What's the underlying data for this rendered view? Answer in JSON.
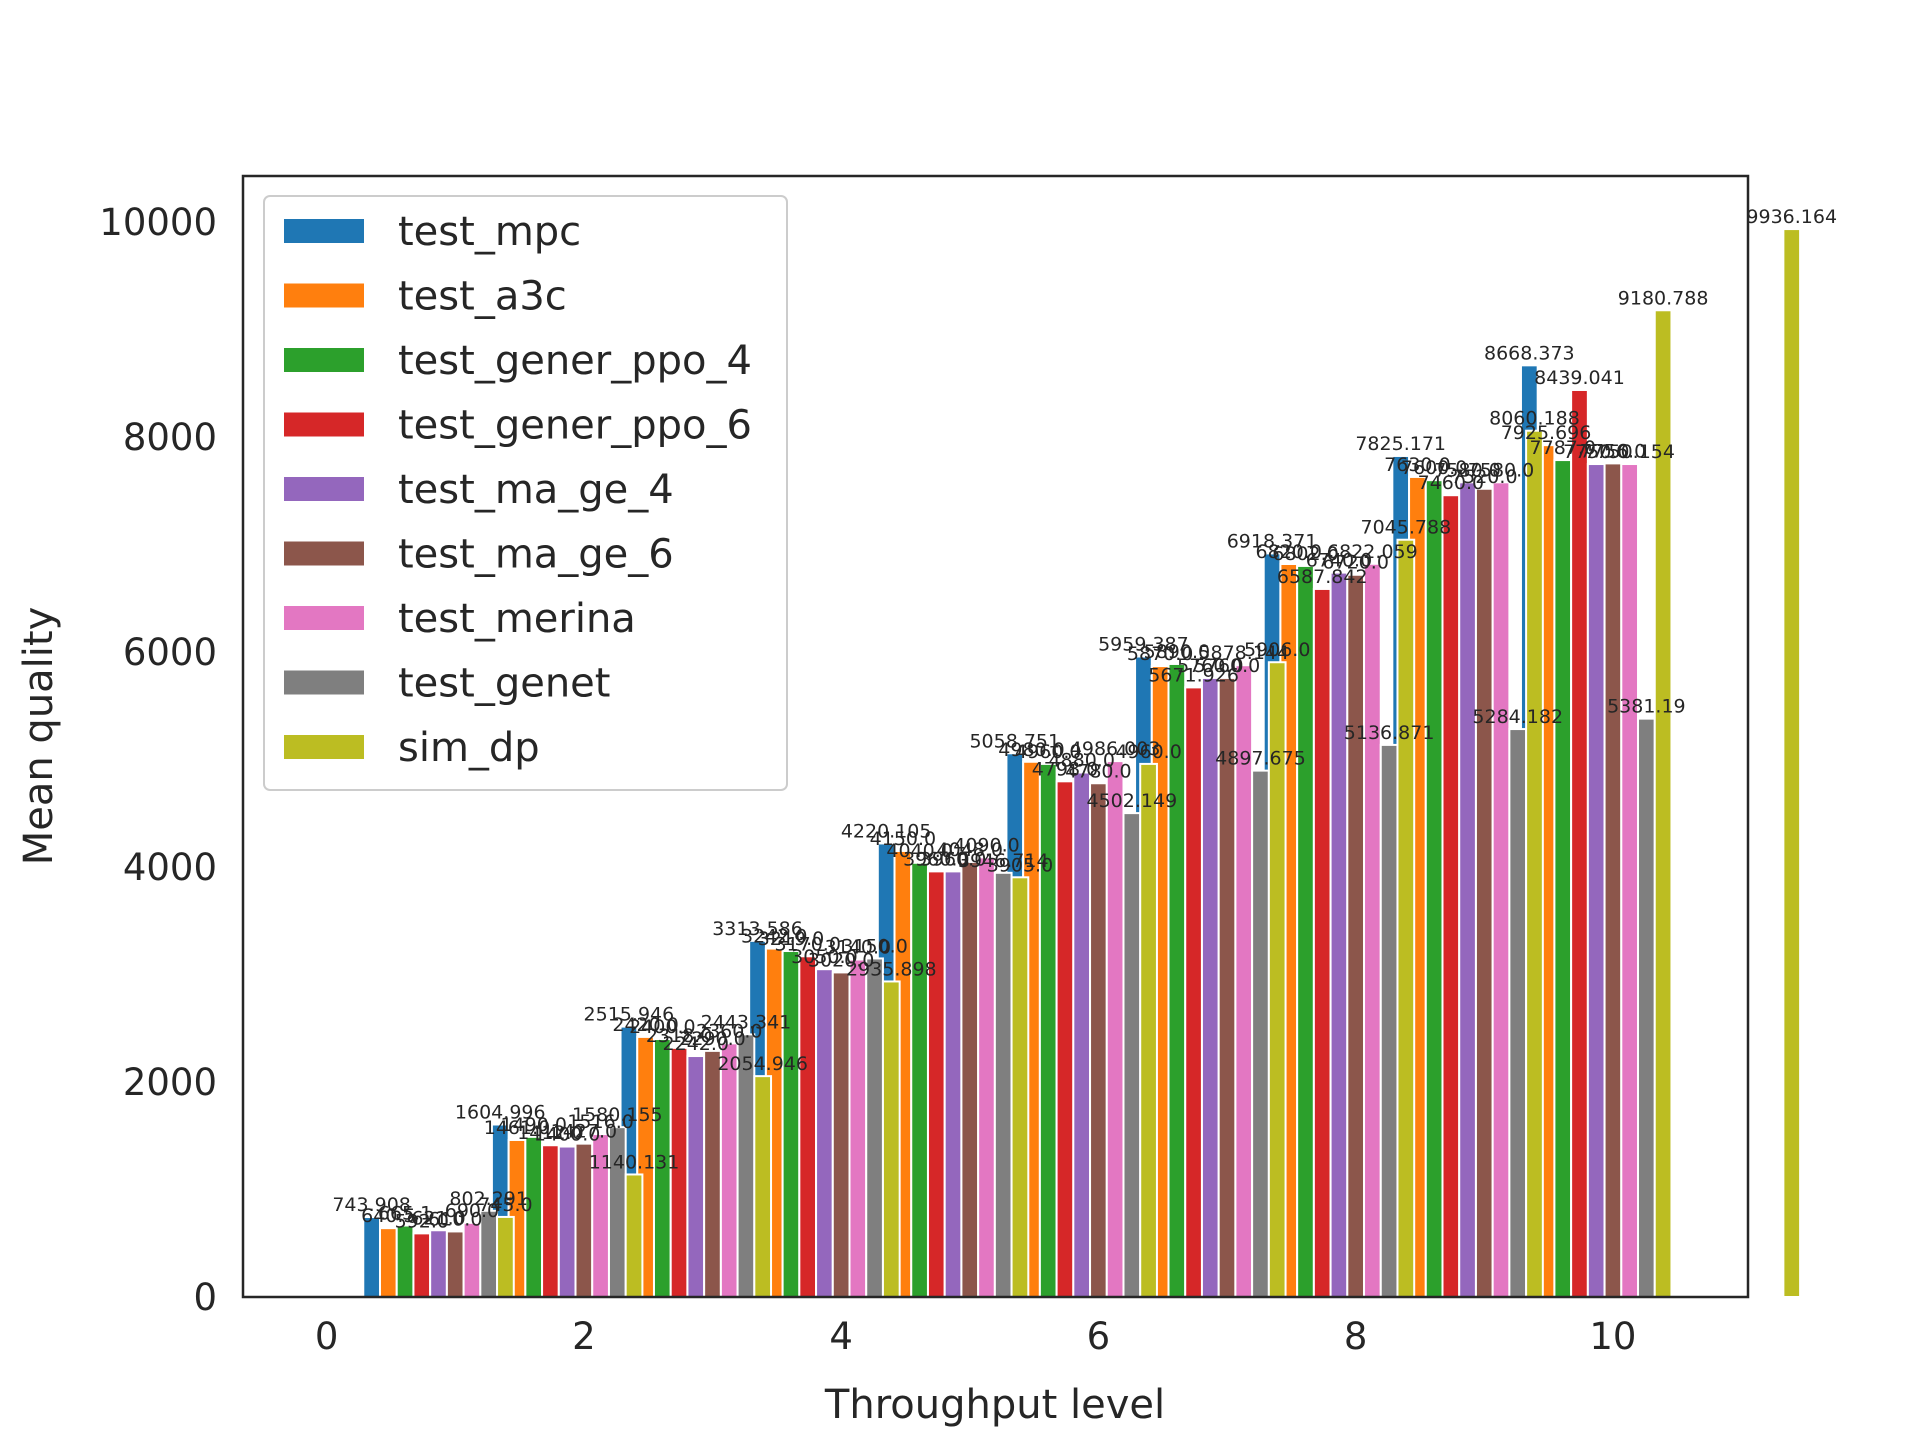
{
  "chart_data": {
    "type": "bar",
    "title": "",
    "xlabel": "Throughput level",
    "ylabel": "Mean quality",
    "xlim": [
      -0.65,
      11.05
    ],
    "ylim": [
      0,
      10430
    ],
    "xticks": [
      0,
      2,
      4,
      6,
      8,
      10
    ],
    "yticks": [
      0,
      2000,
      4000,
      6000,
      8000,
      10000
    ],
    "grid": false,
    "legend_position": "top-left",
    "x": [
      1,
      2,
      3,
      4,
      5,
      6,
      7,
      8,
      9,
      10
    ],
    "series": [
      {
        "name": "test_mpc",
        "color": "#1f77b4",
        "values": [
          743.908,
          1604.996,
          2515.946,
          3313.586,
          4220.105,
          5058.751,
          5959.387,
          6918.371,
          7825.171,
          8668.373
        ],
        "labels": [
          "743.908",
          "1604.996",
          "2515.946",
          "3313.586",
          "4220.105",
          "5058.751",
          "5959.387",
          "6918.371",
          "7825.171",
          "8668.373"
        ]
      },
      {
        "name": "test_a3c",
        "color": "#ff7f0e",
        "values": [
          640.5,
          1461.0,
          2420.0,
          3242.0,
          4150.0,
          4980.0,
          5870.0,
          6820.0,
          7630.0,
          7925.696
        ],
        "labels": [
          "640.5",
          "1461.0",
          "2420.0",
          "3242.0",
          "4150.0",
          "4980.0",
          "5870.0",
          "6820.0",
          "7630.0",
          "7925.696"
        ]
      },
      {
        "name": "test_gener_ppo_4",
        "color": "#2ca02c",
        "values": [
          665.1,
          1490.0,
          2400.0,
          3219.0,
          4040.0,
          4960.0,
          5890.0,
          6802.0,
          7600.0,
          7787.0
        ],
        "labels": [
          "665.1",
          "1490.0",
          "2400.0",
          "3219.0",
          "4040.0",
          "4960.0",
          "5890.0",
          "6802.0",
          "7600.0",
          "7787.0"
        ]
      },
      {
        "name": "test_gener_ppo_6",
        "color": "#d62728",
        "values": [
          592.0,
          1412.0,
          2318.0,
          3170.0,
          3960.0,
          4798.0,
          5671.926,
          6587.842,
          7460.0,
          8439.041
        ],
        "labels": [
          "592.0",
          "1412.0",
          "2318.0",
          "3170.0",
          "3960.0",
          "4798.0",
          "5671.926",
          "6587.842",
          "7460.0",
          "8439.041"
        ]
      },
      {
        "name": "test_ma_ge_4",
        "color": "#9467bd",
        "values": [
          621.0,
          1400.0,
          2242.0,
          3050.0,
          3960.0,
          4880.0,
          5760.0,
          6740.0,
          7580.0,
          7750.0
        ],
        "labels": [
          "621.0",
          "1400.0",
          "2242.0",
          "3050.0",
          "3960.0",
          "4880.0",
          "5760.0",
          "6740.0",
          "7580.0",
          "7750.0"
        ]
      },
      {
        "name": "test_ma_ge_6",
        "color": "#8c564b",
        "values": [
          610.0,
          1427.0,
          2290.0,
          3020.0,
          4048.0,
          4780.0,
          5760.0,
          6720.0,
          7520.0,
          7756.0
        ],
        "labels": [
          "610.0",
          "1427.0",
          "2290.0",
          "3020.0",
          "4048.0",
          "4780.0",
          "5760.0",
          "6720.0",
          "7520.0",
          "7756.0"
        ]
      },
      {
        "name": "test_merina",
        "color": "#e377c2",
        "values": [
          690.0,
          1516.0,
          2360.0,
          3140.0,
          4090.0,
          4986.003,
          5878.144,
          6822.059,
          7580.0,
          7750.154
        ],
        "labels": [
          "690.0",
          "1516.0",
          "2360.0",
          "3140.0",
          "4090.0",
          "4986.003",
          "5878.144",
          "6822.059",
          "7580.0",
          "7750.154"
        ]
      },
      {
        "name": "test_genet",
        "color": "#7f7f7f",
        "values": [
          802.291,
          1580.155,
          2443.341,
          3150.0,
          3946.714,
          4502.149,
          4897.675,
          5136.871,
          5284.182,
          5381.19
        ],
        "labels": [
          "802.291",
          "1580.155",
          "2443.341",
          "3150.0",
          "3946.714",
          "4502.149",
          "4897.675",
          "5136.871",
          "5284.182",
          "5381.19"
        ]
      },
      {
        "name": "sim_dp",
        "color": "#bcbd22",
        "values": [
          745.0,
          1140.131,
          2054.946,
          2935.898,
          3905.0,
          4960.0,
          5906.0,
          7045.788,
          8060.188,
          9180.788,
          9936.164
        ],
        "x": [
          1,
          2,
          3,
          4,
          5,
          6,
          7,
          8,
          9,
          10,
          11
        ],
        "labels": [
          "745.0",
          "1140.131",
          "2054.946",
          "2935.898",
          "3905.0",
          "4960.0",
          "5906.0",
          "7045.788",
          "8060.188",
          "9180.788",
          "9936.164"
        ]
      }
    ]
  }
}
